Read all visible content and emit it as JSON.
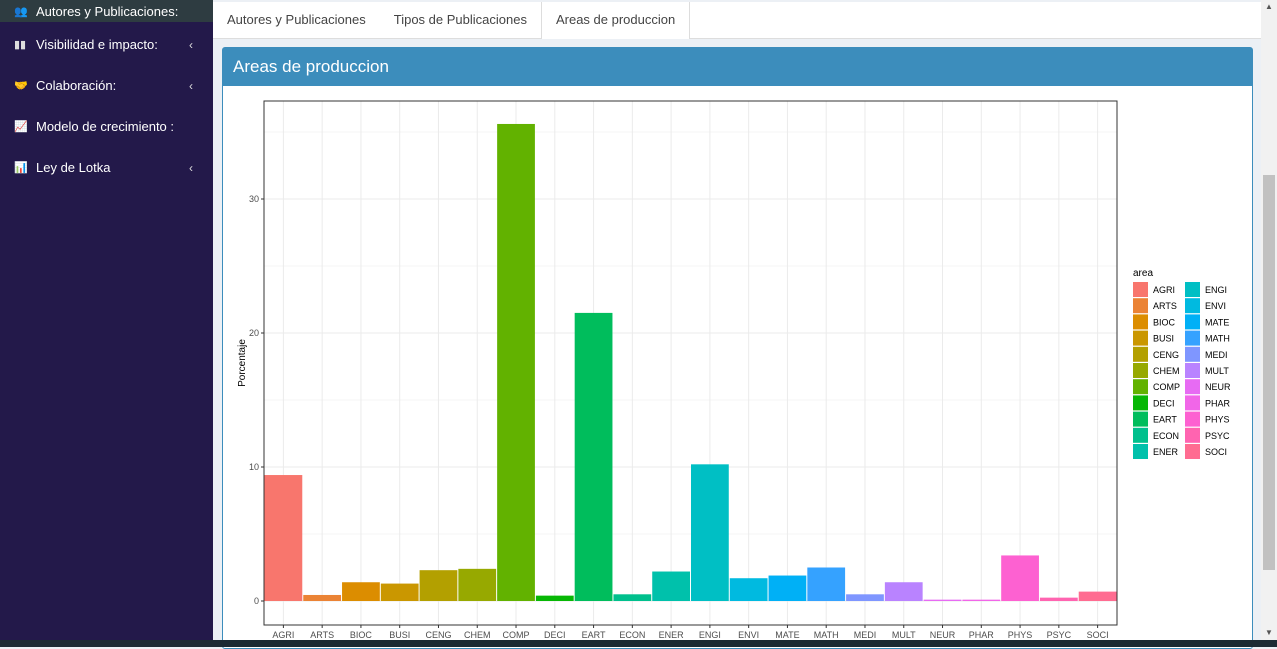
{
  "sidebar": {
    "items": [
      {
        "label": "Autores y Publicaciones:",
        "icon": "users-icon",
        "active": true
      },
      {
        "label": "Visibilidad e impacto:",
        "icon": "book-icon",
        "chevron": true
      },
      {
        "label": "Colaboración:",
        "icon": "handshake-icon",
        "chevron": true
      },
      {
        "label": "Modelo de crecimiento :",
        "icon": "line-chart-icon"
      },
      {
        "label": "Ley de Lotka",
        "icon": "bar-chart-icon",
        "chevron": true
      }
    ]
  },
  "tabs": [
    "Autores y Publicaciones",
    "Tipos de Publicaciones",
    "Areas de produccion"
  ],
  "box_title": "Areas de produccion",
  "chart_data": {
    "type": "bar",
    "title": "",
    "xlabel": "",
    "ylabel": "Porcentaje",
    "ylim": [
      0,
      37
    ],
    "yticks": [
      0,
      10,
      20,
      30
    ],
    "grid": true,
    "legend_title": "area",
    "legend_position": "right",
    "categories": [
      "AGRI",
      "ARTS",
      "BIOC",
      "BUSI",
      "CENG",
      "CHEM",
      "COMP",
      "DECI",
      "EART",
      "ECON",
      "ENER",
      "ENGI",
      "ENVI",
      "MATE",
      "MATH",
      "MEDI",
      "MULT",
      "NEUR",
      "PHAR",
      "PHYS",
      "PSYC",
      "SOCI"
    ],
    "values": [
      9.4,
      0.45,
      1.4,
      1.3,
      2.3,
      2.4,
      35.6,
      0.4,
      21.5,
      0.5,
      2.2,
      10.2,
      1.7,
      1.9,
      2.5,
      0.5,
      1.4,
      0.1,
      0.1,
      3.4,
      0.25,
      0.7
    ],
    "colors": [
      "#F8766D",
      "#EB8335",
      "#DC8D00",
      "#CA9700",
      "#B3A000",
      "#97A900",
      "#62B200",
      "#07B705",
      "#00BD5C",
      "#00C08D",
      "#00C1AB",
      "#00BFC4",
      "#00BAE0",
      "#00B0F6",
      "#35A2FF",
      "#7F96FF",
      "#B983FF",
      "#E76BF3",
      "#F166E8",
      "#FD61D1",
      "#FF64B0",
      "#FF6C91"
    ]
  }
}
